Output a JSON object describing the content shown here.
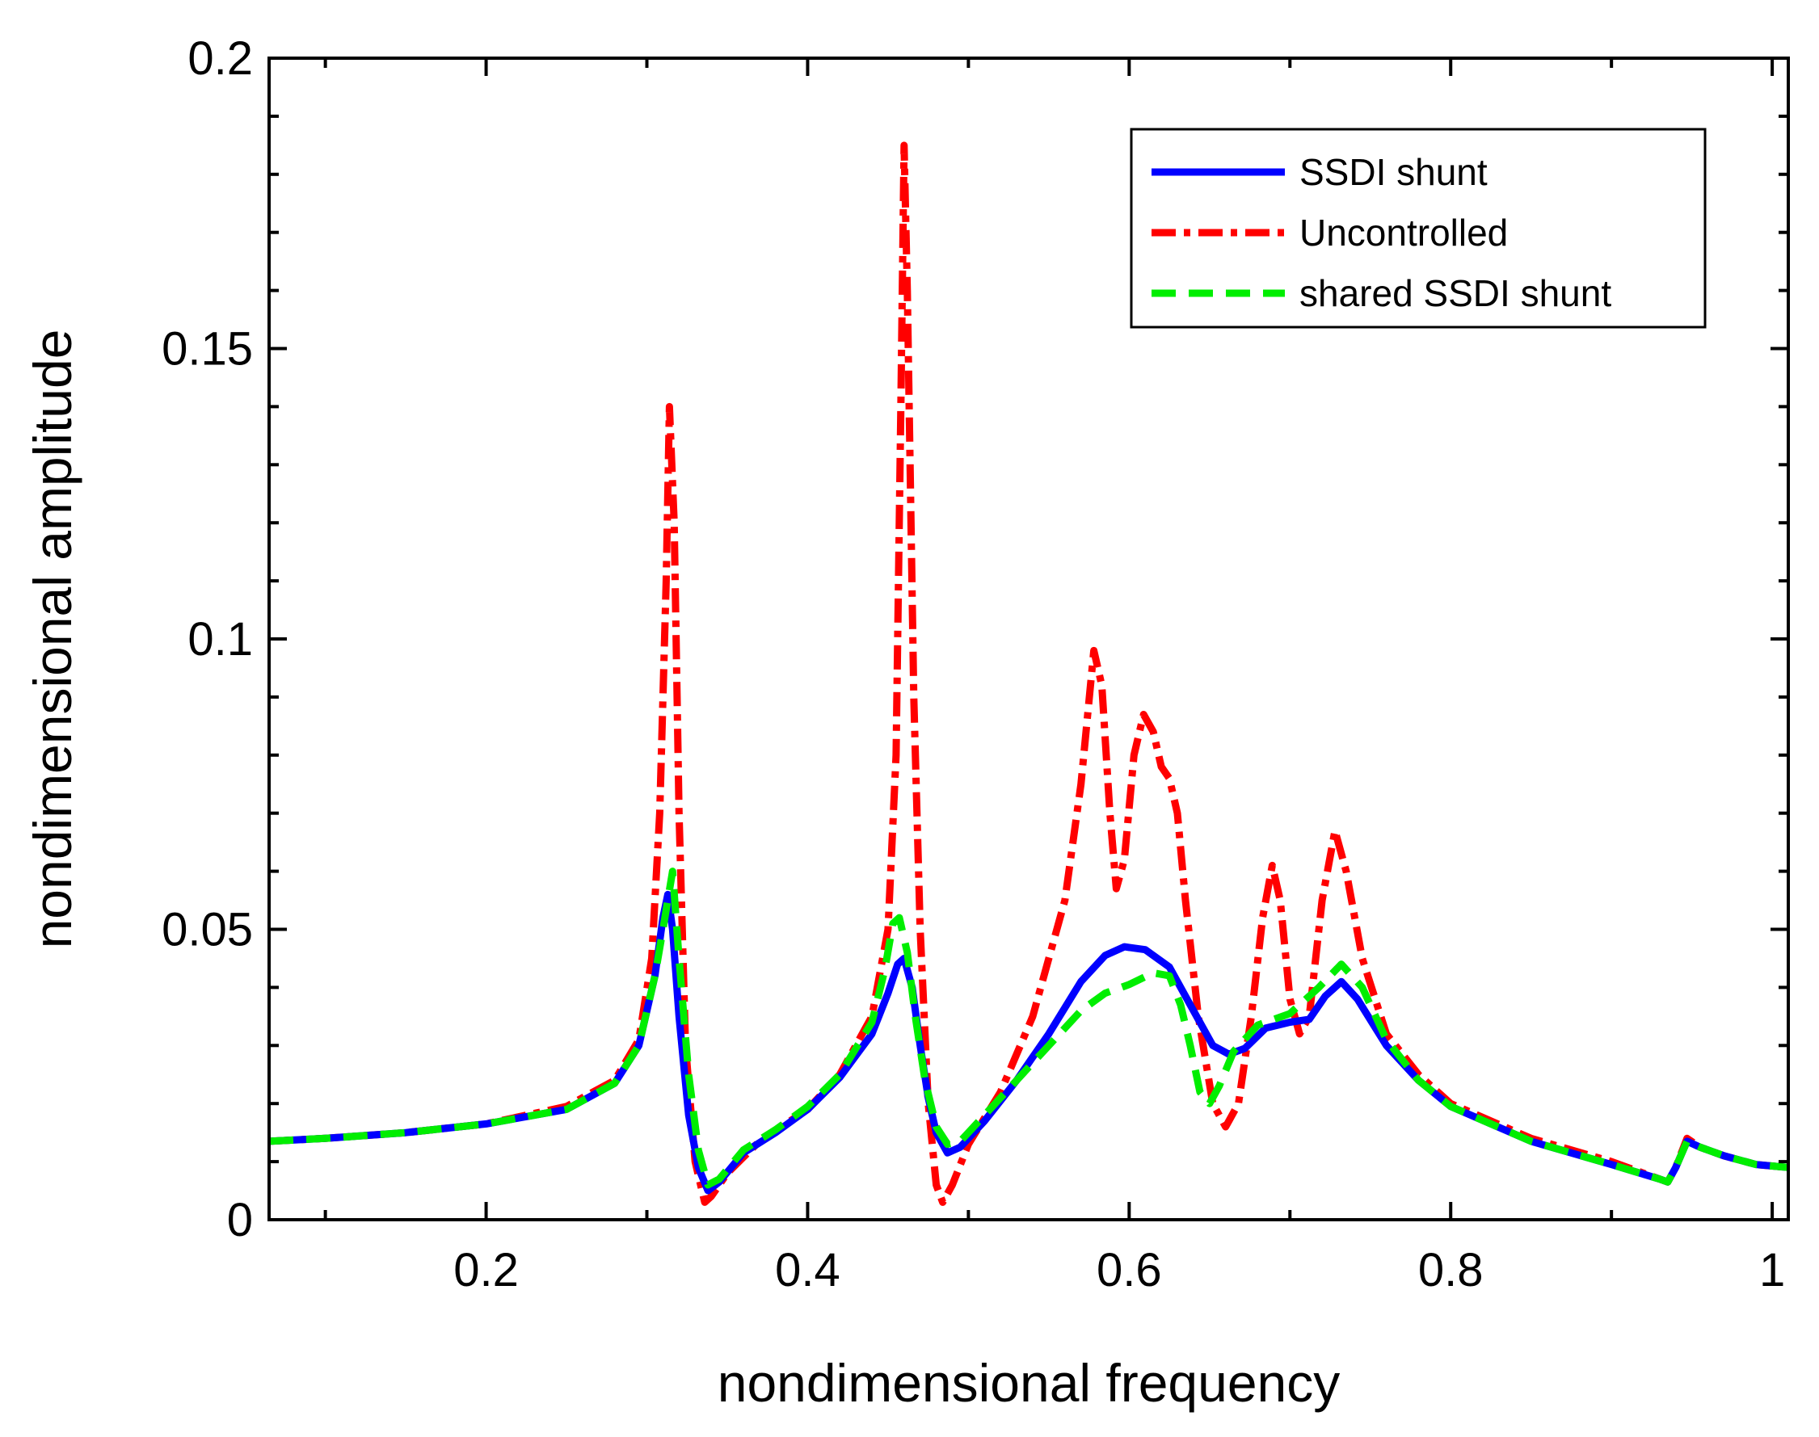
{
  "chart_data": {
    "type": "line",
    "title": "",
    "xlabel": "nondimensional frequency",
    "ylabel": "nondimensional amplitude",
    "xlim": [
      0.065,
      1.01
    ],
    "ylim": [
      0,
      0.2
    ],
    "xticks": [
      {
        "value": 0.2,
        "label": "0.2"
      },
      {
        "value": 0.4,
        "label": "0.4"
      },
      {
        "value": 0.6,
        "label": "0.6"
      },
      {
        "value": 0.8,
        "label": "0.8"
      },
      {
        "value": 1.0,
        "label": "1"
      }
    ],
    "yticks": [
      {
        "value": 0,
        "label": "0"
      },
      {
        "value": 0.05,
        "label": "0.05"
      },
      {
        "value": 0.1,
        "label": "0.1"
      },
      {
        "value": 0.15,
        "label": "0.15"
      },
      {
        "value": 0.2,
        "label": "0.2"
      }
    ],
    "grid": false,
    "legend_position": "top-right",
    "series": [
      {
        "name": "Uncontrolled",
        "color": "#ff0000",
        "style": "dashdot",
        "points": [
          [
            0.065,
            0.0135
          ],
          [
            0.1,
            0.014
          ],
          [
            0.15,
            0.015
          ],
          [
            0.2,
            0.0165
          ],
          [
            0.25,
            0.0195
          ],
          [
            0.28,
            0.024
          ],
          [
            0.295,
            0.031
          ],
          [
            0.303,
            0.045
          ],
          [
            0.308,
            0.07
          ],
          [
            0.312,
            0.11
          ],
          [
            0.314,
            0.14
          ],
          [
            0.317,
            0.12
          ],
          [
            0.32,
            0.07
          ],
          [
            0.324,
            0.03
          ],
          [
            0.33,
            0.01
          ],
          [
            0.336,
            0.003
          ],
          [
            0.34,
            0.004
          ],
          [
            0.35,
            0.008
          ],
          [
            0.37,
            0.0135
          ],
          [
            0.4,
            0.019
          ],
          [
            0.42,
            0.025
          ],
          [
            0.44,
            0.035
          ],
          [
            0.45,
            0.05
          ],
          [
            0.455,
            0.08
          ],
          [
            0.458,
            0.14
          ],
          [
            0.46,
            0.185
          ],
          [
            0.462,
            0.16
          ],
          [
            0.466,
            0.09
          ],
          [
            0.47,
            0.05
          ],
          [
            0.475,
            0.02
          ],
          [
            0.48,
            0.006
          ],
          [
            0.484,
            0.003
          ],
          [
            0.49,
            0.006
          ],
          [
            0.5,
            0.013
          ],
          [
            0.52,
            0.022
          ],
          [
            0.54,
            0.035
          ],
          [
            0.56,
            0.055
          ],
          [
            0.57,
            0.075
          ],
          [
            0.578,
            0.098
          ],
          [
            0.583,
            0.092
          ],
          [
            0.588,
            0.07
          ],
          [
            0.592,
            0.057
          ],
          [
            0.597,
            0.062
          ],
          [
            0.603,
            0.08
          ],
          [
            0.609,
            0.087
          ],
          [
            0.615,
            0.084
          ],
          [
            0.62,
            0.078
          ],
          [
            0.625,
            0.076
          ],
          [
            0.63,
            0.07
          ],
          [
            0.635,
            0.055
          ],
          [
            0.643,
            0.035
          ],
          [
            0.652,
            0.02
          ],
          [
            0.66,
            0.016
          ],
          [
            0.668,
            0.02
          ],
          [
            0.676,
            0.035
          ],
          [
            0.683,
            0.052
          ],
          [
            0.689,
            0.061
          ],
          [
            0.694,
            0.055
          ],
          [
            0.7,
            0.038
          ],
          [
            0.706,
            0.032
          ],
          [
            0.712,
            0.035
          ],
          [
            0.72,
            0.055
          ],
          [
            0.728,
            0.067
          ],
          [
            0.735,
            0.06
          ],
          [
            0.745,
            0.045
          ],
          [
            0.76,
            0.032
          ],
          [
            0.78,
            0.025
          ],
          [
            0.8,
            0.02
          ],
          [
            0.85,
            0.014
          ],
          [
            0.9,
            0.01
          ],
          [
            0.93,
            0.007
          ],
          [
            0.935,
            0.0065
          ],
          [
            0.94,
            0.009
          ],
          [
            0.947,
            0.014
          ],
          [
            0.955,
            0.0125
          ],
          [
            0.97,
            0.011
          ],
          [
            0.99,
            0.0095
          ],
          [
            1.01,
            0.009
          ]
        ]
      },
      {
        "name": "SSDI shunt",
        "color": "#0000ff",
        "style": "solid",
        "points": [
          [
            0.065,
            0.0135
          ],
          [
            0.1,
            0.014
          ],
          [
            0.15,
            0.015
          ],
          [
            0.2,
            0.0165
          ],
          [
            0.25,
            0.019
          ],
          [
            0.28,
            0.0235
          ],
          [
            0.295,
            0.03
          ],
          [
            0.305,
            0.042
          ],
          [
            0.31,
            0.052
          ],
          [
            0.313,
            0.056
          ],
          [
            0.316,
            0.05
          ],
          [
            0.32,
            0.035
          ],
          [
            0.326,
            0.018
          ],
          [
            0.332,
            0.009
          ],
          [
            0.338,
            0.005
          ],
          [
            0.345,
            0.0065
          ],
          [
            0.36,
            0.0115
          ],
          [
            0.38,
            0.015
          ],
          [
            0.4,
            0.019
          ],
          [
            0.42,
            0.0245
          ],
          [
            0.44,
            0.032
          ],
          [
            0.45,
            0.039
          ],
          [
            0.456,
            0.044
          ],
          [
            0.46,
            0.045
          ],
          [
            0.465,
            0.04
          ],
          [
            0.47,
            0.03
          ],
          [
            0.475,
            0.021
          ],
          [
            0.48,
            0.015
          ],
          [
            0.487,
            0.0115
          ],
          [
            0.495,
            0.0125
          ],
          [
            0.51,
            0.017
          ],
          [
            0.53,
            0.024
          ],
          [
            0.55,
            0.032
          ],
          [
            0.57,
            0.041
          ],
          [
            0.585,
            0.0455
          ],
          [
            0.597,
            0.047
          ],
          [
            0.61,
            0.0465
          ],
          [
            0.625,
            0.0435
          ],
          [
            0.64,
            0.036
          ],
          [
            0.652,
            0.03
          ],
          [
            0.662,
            0.0285
          ],
          [
            0.672,
            0.0295
          ],
          [
            0.685,
            0.033
          ],
          [
            0.7,
            0.034
          ],
          [
            0.712,
            0.0345
          ],
          [
            0.722,
            0.0385
          ],
          [
            0.732,
            0.041
          ],
          [
            0.742,
            0.038
          ],
          [
            0.76,
            0.03
          ],
          [
            0.78,
            0.024
          ],
          [
            0.8,
            0.0195
          ],
          [
            0.85,
            0.0135
          ],
          [
            0.9,
            0.0095
          ],
          [
            0.93,
            0.007
          ],
          [
            0.935,
            0.0065
          ],
          [
            0.94,
            0.009
          ],
          [
            0.947,
            0.0135
          ],
          [
            0.955,
            0.0125
          ],
          [
            0.97,
            0.011
          ],
          [
            0.99,
            0.0095
          ],
          [
            1.01,
            0.009
          ]
        ]
      },
      {
        "name": "shared SSDI shunt",
        "color": "#00ee00",
        "style": "dashed",
        "points": [
          [
            0.065,
            0.0135
          ],
          [
            0.1,
            0.014
          ],
          [
            0.15,
            0.015
          ],
          [
            0.2,
            0.0165
          ],
          [
            0.25,
            0.019
          ],
          [
            0.28,
            0.0235
          ],
          [
            0.295,
            0.03
          ],
          [
            0.305,
            0.042
          ],
          [
            0.31,
            0.05
          ],
          [
            0.316,
            0.06
          ],
          [
            0.32,
            0.045
          ],
          [
            0.326,
            0.025
          ],
          [
            0.332,
            0.012
          ],
          [
            0.338,
            0.006
          ],
          [
            0.345,
            0.007
          ],
          [
            0.36,
            0.012
          ],
          [
            0.38,
            0.0155
          ],
          [
            0.4,
            0.0195
          ],
          [
            0.42,
            0.025
          ],
          [
            0.44,
            0.034
          ],
          [
            0.448,
            0.043
          ],
          [
            0.453,
            0.051
          ],
          [
            0.457,
            0.052
          ],
          [
            0.462,
            0.046
          ],
          [
            0.467,
            0.035
          ],
          [
            0.473,
            0.024
          ],
          [
            0.48,
            0.016
          ],
          [
            0.487,
            0.013
          ],
          [
            0.495,
            0.0135
          ],
          [
            0.51,
            0.018
          ],
          [
            0.53,
            0.024
          ],
          [
            0.55,
            0.03
          ],
          [
            0.57,
            0.036
          ],
          [
            0.585,
            0.039
          ],
          [
            0.6,
            0.0405
          ],
          [
            0.615,
            0.0425
          ],
          [
            0.625,
            0.042
          ],
          [
            0.632,
            0.037
          ],
          [
            0.638,
            0.03
          ],
          [
            0.644,
            0.022
          ],
          [
            0.65,
            0.02
          ],
          [
            0.656,
            0.023
          ],
          [
            0.665,
            0.029
          ],
          [
            0.68,
            0.0335
          ],
          [
            0.7,
            0.0355
          ],
          [
            0.718,
            0.04
          ],
          [
            0.732,
            0.044
          ],
          [
            0.745,
            0.04
          ],
          [
            0.76,
            0.031
          ],
          [
            0.78,
            0.024
          ],
          [
            0.8,
            0.0195
          ],
          [
            0.85,
            0.0135
          ],
          [
            0.9,
            0.0095
          ],
          [
            0.93,
            0.007
          ],
          [
            0.935,
            0.0065
          ],
          [
            0.94,
            0.009
          ],
          [
            0.947,
            0.0135
          ],
          [
            0.955,
            0.0125
          ],
          [
            0.97,
            0.011
          ],
          [
            0.99,
            0.0095
          ],
          [
            1.01,
            0.009
          ]
        ]
      }
    ]
  }
}
